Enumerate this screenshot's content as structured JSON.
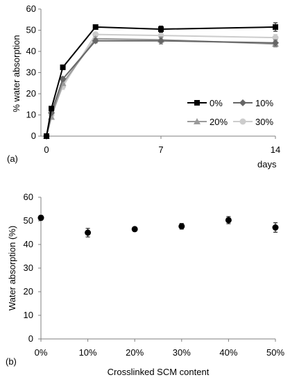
{
  "chart_data": [
    {
      "panel_label": "(a)",
      "type": "line",
      "xlabel": "days",
      "ylabel": "% water absorption",
      "xlim": [
        0,
        14
      ],
      "ylim": [
        0,
        60
      ],
      "xticks": [
        0,
        7,
        14
      ],
      "yticks": [
        0,
        10,
        20,
        30,
        40,
        50,
        60
      ],
      "grid": false,
      "legend_position": "right",
      "series": [
        {
          "name": "0%",
          "marker": "square",
          "color": "#000000",
          "x": [
            0,
            0.3,
            1,
            3,
            7,
            14
          ],
          "y": [
            0,
            13,
            32.5,
            51.5,
            50.5,
            51.5
          ],
          "err": [
            0,
            0.8,
            1,
            0.8,
            1.5,
            2
          ]
        },
        {
          "name": "10%",
          "marker": "diamond",
          "color": "#666666",
          "x": [
            0,
            0.3,
            1,
            3,
            7,
            14
          ],
          "y": [
            0,
            11,
            27,
            45,
            45,
            44
          ],
          "err": [
            0,
            0.8,
            1,
            1,
            1.5,
            1.5
          ]
        },
        {
          "name": "20%",
          "marker": "triangle",
          "color": "#9a9a9a",
          "x": [
            0,
            0.3,
            1,
            3,
            7,
            14
          ],
          "y": [
            0,
            9,
            25,
            46,
            45.5,
            43.5
          ],
          "err": [
            0,
            0.8,
            1,
            1,
            1.5,
            1.5
          ]
        },
        {
          "name": "30%",
          "marker": "circle",
          "color": "#cccccc",
          "x": [
            0,
            0.3,
            1,
            3,
            7,
            14
          ],
          "y": [
            0,
            10,
            23.5,
            48,
            47.5,
            46.5
          ],
          "err": [
            0,
            0.8,
            1.5,
            1,
            1.5,
            1.5
          ]
        }
      ]
    },
    {
      "panel_label": "(b)",
      "type": "scatter",
      "xlabel": "Crosslinked SCM content",
      "ylabel": "Water absorption (%)",
      "ylim": [
        0,
        60
      ],
      "yticks": [
        0,
        10,
        20,
        30,
        40,
        50,
        60
      ],
      "categories": [
        "0%",
        "10%",
        "20%",
        "30%",
        "40%",
        "50%"
      ],
      "values": [
        51.3,
        45,
        46.5,
        47.7,
        50.3,
        47.2
      ],
      "err": [
        1,
        1.8,
        0.8,
        1.2,
        1.5,
        2
      ],
      "grid": false,
      "color": "#000000"
    }
  ]
}
